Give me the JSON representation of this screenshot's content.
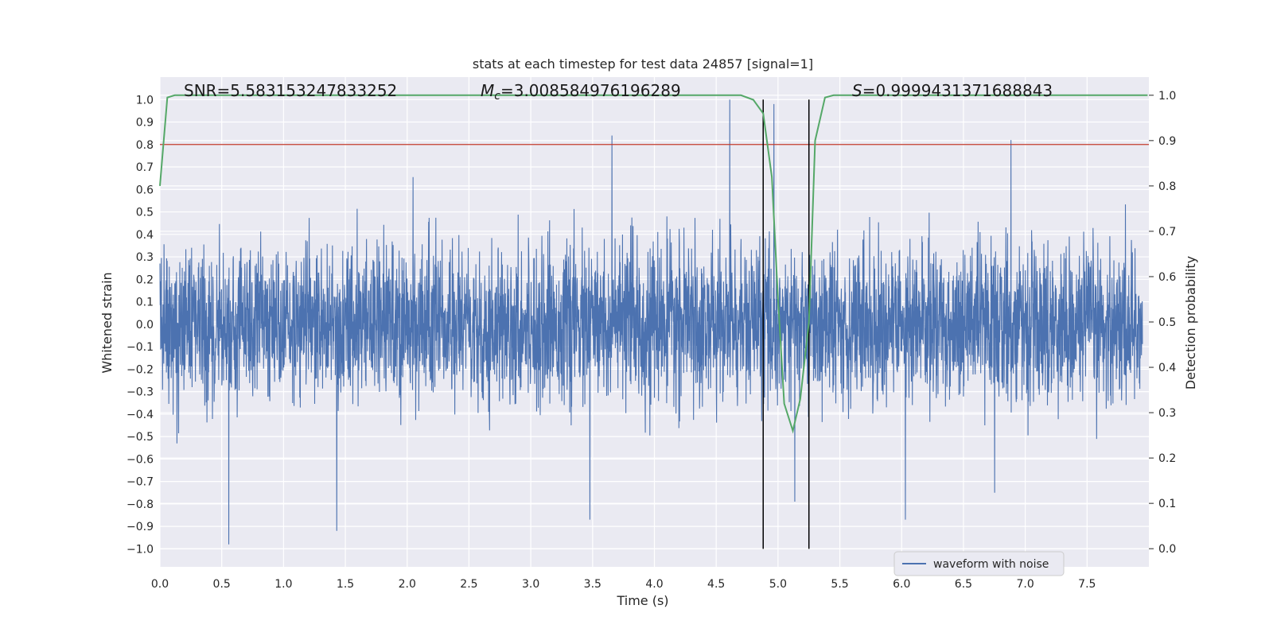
{
  "chart_data": {
    "type": "line",
    "title": "stats at each timestep for test data 24857 [signal=1]",
    "xlabel": "Time (s)",
    "ylabel_left": "Whitened strain",
    "ylabel_right": "Detection probability",
    "xlim": [
      0.0,
      8.0
    ],
    "ylim_left": [
      -1.08,
      1.1
    ],
    "ylim_right": [
      -0.04,
      1.04
    ],
    "x_ticks": [
      "0.0",
      "0.5",
      "1.0",
      "1.5",
      "2.0",
      "2.5",
      "3.0",
      "3.5",
      "4.0",
      "4.5",
      "5.0",
      "5.5",
      "6.0",
      "6.5",
      "7.0",
      "7.5"
    ],
    "x_tick_values": [
      0.0,
      0.5,
      1.0,
      1.5,
      2.0,
      2.5,
      3.0,
      3.5,
      4.0,
      4.5,
      5.0,
      5.5,
      6.0,
      6.5,
      7.0,
      7.5
    ],
    "y_left_ticks": [
      "1.0",
      "0.9",
      "0.8",
      "0.7",
      "0.6",
      "0.5",
      "0.4",
      "0.3",
      "0.2",
      "0.1",
      "0.0",
      "−0.1",
      "−0.2",
      "−0.3",
      "−0.4",
      "−0.5",
      "−0.6",
      "−0.7",
      "−0.8",
      "−0.9",
      "−1.0"
    ],
    "y_left_tick_values": [
      1.0,
      0.9,
      0.8,
      0.7,
      0.6,
      0.5,
      0.4,
      0.3,
      0.2,
      0.1,
      0.0,
      -0.1,
      -0.2,
      -0.3,
      -0.4,
      -0.5,
      -0.6,
      -0.7,
      -0.8,
      -0.9,
      -1.0
    ],
    "y_right_ticks": [
      "1.0",
      "0.9",
      "0.8",
      "0.7",
      "0.6",
      "0.5",
      "0.4",
      "0.3",
      "0.2",
      "0.1",
      "0.0"
    ],
    "y_right_tick_values": [
      1.0,
      0.9,
      0.8,
      0.7,
      0.6,
      0.5,
      0.4,
      0.3,
      0.2,
      0.1,
      0.0
    ],
    "threshold": {
      "value": 0.8,
      "axis": "left",
      "color": "#c0392b"
    },
    "vlines": [
      4.88,
      5.25
    ],
    "annotations": {
      "snr": "SNR=5.583153247833252",
      "mc_prefix": "M",
      "mc_sub": "c",
      "mc_value": "=3.008584976196289",
      "s_prefix": "S",
      "s_value": "=0.9999431371688843"
    },
    "series": [
      {
        "name": "waveform with noise",
        "axis": "left",
        "color": "#4c72b0",
        "description_note": "dense noisy whitened strain, amplitude mostly within ±0.5 with spikes",
        "samples": 4096,
        "typical_amplitude": 0.45,
        "spikes": [
          {
            "x": 0.56,
            "y": -0.98
          },
          {
            "x": 1.44,
            "y": -0.92
          },
          {
            "x": 3.68,
            "y": 0.84
          },
          {
            "x": 3.5,
            "y": -0.87
          },
          {
            "x": 4.64,
            "y": 1.0
          },
          {
            "x": 5.0,
            "y": 0.98
          },
          {
            "x": 6.93,
            "y": 0.82
          },
          {
            "x": 6.07,
            "y": -0.87
          },
          {
            "x": 5.17,
            "y": -0.79
          }
        ]
      },
      {
        "name": "Detection probability",
        "axis": "right",
        "color": "#55a868",
        "x": [
          0.0,
          0.06,
          0.12,
          0.5,
          1.0,
          2.0,
          3.0,
          4.0,
          4.5,
          4.7,
          4.8,
          4.88,
          4.95,
          5.0,
          5.05,
          5.12,
          5.18,
          5.25,
          5.3,
          5.38,
          5.45,
          5.6,
          6.0,
          7.0,
          8.0
        ],
        "values": [
          0.8,
          0.995,
          1.0,
          1.0,
          1.0,
          1.0,
          1.0,
          1.0,
          1.0,
          1.0,
          0.99,
          0.96,
          0.82,
          0.55,
          0.32,
          0.26,
          0.33,
          0.5,
          0.9,
          0.995,
          1.0,
          1.0,
          1.0,
          1.0,
          1.0
        ]
      }
    ],
    "legend": {
      "label": "waveform with noise",
      "placement": "lower-center-right"
    },
    "grid": true
  }
}
